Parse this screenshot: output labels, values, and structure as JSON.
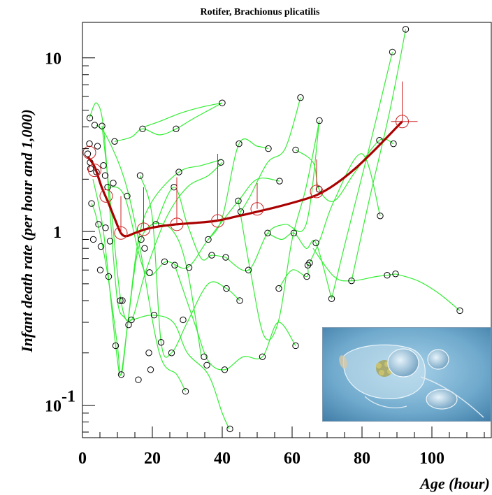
{
  "chart_data": {
    "type": "scatter",
    "title": "Rotifer, Brachionus plicatilis",
    "xlabel": "Age (hour)",
    "ylabel": "Infant death rate (per hour and 1,000)",
    "xlim": [
      0,
      117
    ],
    "ylim": [
      0.065,
      16
    ],
    "yscale": "log",
    "x_ticks": [
      0,
      20,
      40,
      60,
      80,
      100
    ],
    "y_ticks": [
      {
        "value": 0.1,
        "base": "10",
        "exp": "-1"
      },
      {
        "value": 1,
        "base": "1",
        "exp": ""
      },
      {
        "value": 10,
        "base": "10",
        "exp": ""
      }
    ],
    "colors": {
      "individual_curves": "#33ee33",
      "mean_curve": "#aa0000",
      "mean_markers": "#cc2222",
      "points": "#000000"
    },
    "points": [
      [
        1.5,
        2.8
      ],
      [
        2.0,
        3.2
      ],
      [
        2.1,
        4.5
      ],
      [
        2.2,
        2.5
      ],
      [
        2.3,
        2.3
      ],
      [
        2.6,
        1.45
      ],
      [
        3.1,
        0.9
      ],
      [
        3.5,
        4.1
      ],
      [
        4.0,
        2.2
      ],
      [
        4.3,
        3.1
      ],
      [
        4.6,
        1.1
      ],
      [
        5.1,
        0.6
      ],
      [
        5.3,
        0.82
      ],
      [
        5.6,
        4.05
      ],
      [
        6.0,
        2.4
      ],
      [
        6.5,
        2.1
      ],
      [
        6.6,
        1.05
      ],
      [
        7.2,
        1.8
      ],
      [
        7.5,
        0.55
      ],
      [
        7.9,
        0.88
      ],
      [
        8.8,
        1.9
      ],
      [
        9.2,
        3.3
      ],
      [
        9.5,
        0.22
      ],
      [
        10.8,
        0.4
      ],
      [
        11.1,
        0.15
      ],
      [
        11.4,
        0.4
      ],
      [
        12.8,
        1.6
      ],
      [
        13.2,
        0.29
      ],
      [
        14.0,
        0.31
      ],
      [
        16.0,
        0.14
      ],
      [
        16.8,
        0.9
      ],
      [
        16.5,
        2.1
      ],
      [
        17.2,
        3.9
      ],
      [
        17.8,
        0.8
      ],
      [
        19.0,
        0.2
      ],
      [
        19.2,
        0.58
      ],
      [
        19.5,
        0.16
      ],
      [
        20.5,
        0.33
      ],
      [
        21.0,
        1.1
      ],
      [
        22.5,
        0.23
      ],
      [
        23.5,
        0.67
      ],
      [
        25.5,
        0.2
      ],
      [
        26.2,
        1.8
      ],
      [
        26.4,
        0.64
      ],
      [
        26.8,
        3.9
      ],
      [
        27.6,
        2.2
      ],
      [
        28.8,
        0.31
      ],
      [
        29.5,
        0.12
      ],
      [
        30.5,
        0.62
      ],
      [
        34.8,
        0.19
      ],
      [
        35.6,
        0.17
      ],
      [
        36.0,
        0.9
      ],
      [
        37.0,
        0.73
      ],
      [
        39.6,
        2.5
      ],
      [
        40.0,
        5.5
      ],
      [
        40.7,
        0.16
      ],
      [
        41.0,
        0.71
      ],
      [
        41.2,
        0.47
      ],
      [
        42.2,
        0.073
      ],
      [
        44.6,
        1.5
      ],
      [
        44.8,
        3.2
      ],
      [
        45.3,
        1.3
      ],
      [
        45.0,
        0.4
      ],
      [
        47.5,
        0.6
      ],
      [
        51.5,
        0.19
      ],
      [
        53.0,
        0.98
      ],
      [
        53.2,
        3.0
      ],
      [
        56.2,
        0.47
      ],
      [
        56.4,
        1.95
      ],
      [
        60.5,
        0.98
      ],
      [
        61.0,
        2.95
      ],
      [
        61.0,
        0.22
      ],
      [
        62.4,
        5.9
      ],
      [
        64.2,
        0.55
      ],
      [
        64.5,
        0.64
      ],
      [
        65.0,
        0.66
      ],
      [
        66.8,
        0.86
      ],
      [
        67.7,
        1.75
      ],
      [
        67.8,
        4.35
      ],
      [
        71.3,
        0.41
      ],
      [
        77.0,
        0.52
      ],
      [
        85.0,
        3.35
      ],
      [
        85.2,
        1.23
      ],
      [
        87.2,
        0.56
      ],
      [
        88.7,
        10.8
      ],
      [
        89.0,
        3.2
      ],
      [
        89.6,
        0.57
      ],
      [
        92.5,
        14.6
      ],
      [
        108.0,
        0.35
      ]
    ],
    "mean_curve": [
      [
        1.5,
        2.7
      ],
      [
        3.5,
        2.35
      ],
      [
        5.5,
        1.8
      ],
      [
        7.5,
        1.45
      ],
      [
        9.5,
        1.15
      ],
      [
        11,
        0.98
      ],
      [
        12.5,
        0.94
      ],
      [
        15,
        0.98
      ],
      [
        18,
        1.03
      ],
      [
        22,
        1.07
      ],
      [
        27,
        1.1
      ],
      [
        32,
        1.12
      ],
      [
        38,
        1.15
      ],
      [
        44,
        1.22
      ],
      [
        50,
        1.3
      ],
      [
        56,
        1.39
      ],
      [
        62,
        1.5
      ],
      [
        67,
        1.62
      ],
      [
        72,
        1.85
      ],
      [
        78,
        2.3
      ],
      [
        84,
        3.0
      ],
      [
        91.5,
        4.3
      ]
    ],
    "mean_points": [
      {
        "x": 2.0,
        "y": 2.85,
        "err": 0
      },
      {
        "x": 3.5,
        "y": 2.25,
        "err": 0
      },
      {
        "x": 6.8,
        "y": 1.6,
        "err": 0
      },
      {
        "x": 11.0,
        "y": 0.98,
        "err": 1.6
      },
      {
        "x": 17.5,
        "y": 1.03,
        "err": 1.8
      },
      {
        "x": 27.0,
        "y": 1.1,
        "err": 2.05
      },
      {
        "x": 38.7,
        "y": 1.15,
        "err": 2.8
      },
      {
        "x": 50.0,
        "y": 1.35,
        "err": 1.9
      },
      {
        "x": 67.0,
        "y": 1.7,
        "err": 2.6
      },
      {
        "x": 91.5,
        "y": 4.3,
        "err": 7.3
      }
    ],
    "individual_curves": [
      [
        [
          2,
          4.5
        ],
        [
          4,
          5.5
        ],
        [
          6,
          4
        ],
        [
          8,
          1.2
        ],
        [
          10,
          0.4
        ],
        [
          12,
          0.32
        ],
        [
          14,
          0.31
        ],
        [
          20,
          0.33
        ],
        [
          26,
          0.3
        ],
        [
          30,
          0.2
        ],
        [
          36,
          0.15
        ],
        [
          40,
          0.09
        ],
        [
          42,
          0.073
        ]
      ],
      [
        [
          2.6,
          1.45
        ],
        [
          4,
          1.2
        ],
        [
          7,
          0.6
        ],
        [
          10,
          0.22
        ],
        [
          11,
          0.15
        ],
        [
          13,
          0.3
        ],
        [
          16,
          0.8
        ],
        [
          20,
          1.1
        ],
        [
          26,
          1.0
        ],
        [
          30,
          0.6
        ],
        [
          34,
          0.19
        ]
      ],
      [
        [
          4,
          4.1
        ],
        [
          7,
          3.5
        ],
        [
          12,
          2.0
        ],
        [
          16,
          0.9
        ],
        [
          22,
          0.2
        ],
        [
          27,
          0.15
        ],
        [
          29.5,
          0.12
        ]
      ],
      [
        [
          5.6,
          4.05
        ],
        [
          8,
          1.5
        ],
        [
          11,
          0.4
        ],
        [
          14,
          0.31
        ],
        [
          18,
          0.58
        ],
        [
          24,
          1.2
        ],
        [
          30,
          1.8
        ],
        [
          36,
          2.1
        ],
        [
          40,
          2.5
        ]
      ],
      [
        [
          9.2,
          3.3
        ],
        [
          14,
          3.5
        ],
        [
          17.2,
          3.9
        ],
        [
          22,
          3.6
        ],
        [
          26.8,
          3.9
        ],
        [
          32,
          4.5
        ],
        [
          40,
          5.5
        ]
      ],
      [
        [
          17.5,
          4.0
        ],
        [
          22,
          4.3
        ],
        [
          28,
          4.8
        ],
        [
          34,
          5.2
        ],
        [
          40,
          5.5
        ]
      ],
      [
        [
          21,
          1.1
        ],
        [
          26.2,
          1.8
        ],
        [
          30,
          1.1
        ],
        [
          34,
          0.7
        ],
        [
          37,
          0.73
        ],
        [
          41,
          0.71
        ]
      ],
      [
        [
          16.5,
          2.1
        ],
        [
          20,
          1.2
        ],
        [
          22.5,
          0.23
        ],
        [
          25.5,
          0.2
        ],
        [
          30,
          0.3
        ],
        [
          36,
          0.5
        ],
        [
          41.2,
          0.47
        ],
        [
          45,
          0.4
        ]
      ],
      [
        [
          3,
          2.0
        ],
        [
          6,
          1.0
        ],
        [
          9.5,
          0.22
        ],
        [
          11.1,
          0.15
        ],
        [
          13,
          0.3
        ],
        [
          16,
          0.9
        ],
        [
          20,
          1.5
        ],
        [
          27.6,
          2.2
        ],
        [
          34,
          2.4
        ],
        [
          40,
          2.6
        ]
      ],
      [
        [
          7.2,
          1.8
        ],
        [
          12,
          1.6
        ],
        [
          18,
          0.58
        ],
        [
          24,
          0.67
        ],
        [
          30,
          0.62
        ],
        [
          36,
          0.9
        ],
        [
          44.6,
          1.5
        ],
        [
          50,
          2.0
        ],
        [
          56.4,
          1.95
        ]
      ],
      [
        [
          26.4,
          0.64
        ],
        [
          32,
          0.3
        ],
        [
          36,
          0.18
        ],
        [
          40.7,
          0.16
        ],
        [
          46,
          0.19
        ],
        [
          51.5,
          0.19
        ],
        [
          56,
          0.3
        ],
        [
          61,
          0.22
        ]
      ],
      [
        [
          36,
          0.9
        ],
        [
          40,
          1.2
        ],
        [
          44.8,
          3.2
        ],
        [
          50,
          3.1
        ],
        [
          53.2,
          3.0
        ]
      ],
      [
        [
          45.3,
          1.3
        ],
        [
          48,
          1.6
        ],
        [
          53,
          2.5
        ],
        [
          58,
          3.0
        ],
        [
          62.4,
          5.9
        ]
      ],
      [
        [
          41,
          0.71
        ],
        [
          47.5,
          0.6
        ],
        [
          53,
          0.98
        ],
        [
          58,
          1.1
        ],
        [
          64,
          1.1
        ],
        [
          67.8,
          4.35
        ]
      ],
      [
        [
          53,
          0.98
        ],
        [
          57,
          0.9
        ],
        [
          60.5,
          0.98
        ],
        [
          64,
          0.8
        ],
        [
          66.8,
          0.86
        ],
        [
          71.3,
          0.41
        ]
      ],
      [
        [
          56.2,
          0.47
        ],
        [
          60,
          0.6
        ],
        [
          64.2,
          0.55
        ],
        [
          64.5,
          0.64
        ],
        [
          65,
          0.66
        ],
        [
          68,
          0.9
        ],
        [
          72,
          1.5
        ],
        [
          80,
          2.8
        ],
        [
          85.2,
          1.23
        ]
      ],
      [
        [
          61,
          2.95
        ],
        [
          66,
          2.5
        ],
        [
          67.7,
          1.75
        ],
        [
          72,
          1.5
        ],
        [
          78,
          2.2
        ],
        [
          85,
          3.35
        ],
        [
          89,
          3.2
        ]
      ],
      [
        [
          66,
          0.8
        ],
        [
          72,
          0.55
        ],
        [
          77,
          0.52
        ],
        [
          84,
          0.55
        ],
        [
          87.2,
          0.56
        ],
        [
          89.6,
          0.57
        ]
      ],
      [
        [
          71.3,
          0.41
        ],
        [
          76,
          1.0
        ],
        [
          82,
          3.0
        ],
        [
          88.7,
          10.8
        ]
      ],
      [
        [
          77,
          0.52
        ],
        [
          82,
          1.5
        ],
        [
          88,
          5.0
        ],
        [
          92.5,
          14.6
        ]
      ],
      [
        [
          89.6,
          0.57
        ],
        [
          96,
          0.52
        ],
        [
          102,
          0.44
        ],
        [
          108,
          0.35
        ]
      ],
      [
        [
          44.6,
          1.5
        ],
        [
          48,
          0.6
        ],
        [
          52,
          0.25
        ],
        [
          56,
          0.3
        ],
        [
          60,
          0.9
        ],
        [
          64,
          1.8
        ],
        [
          67.8,
          4.35
        ]
      ]
    ]
  }
}
